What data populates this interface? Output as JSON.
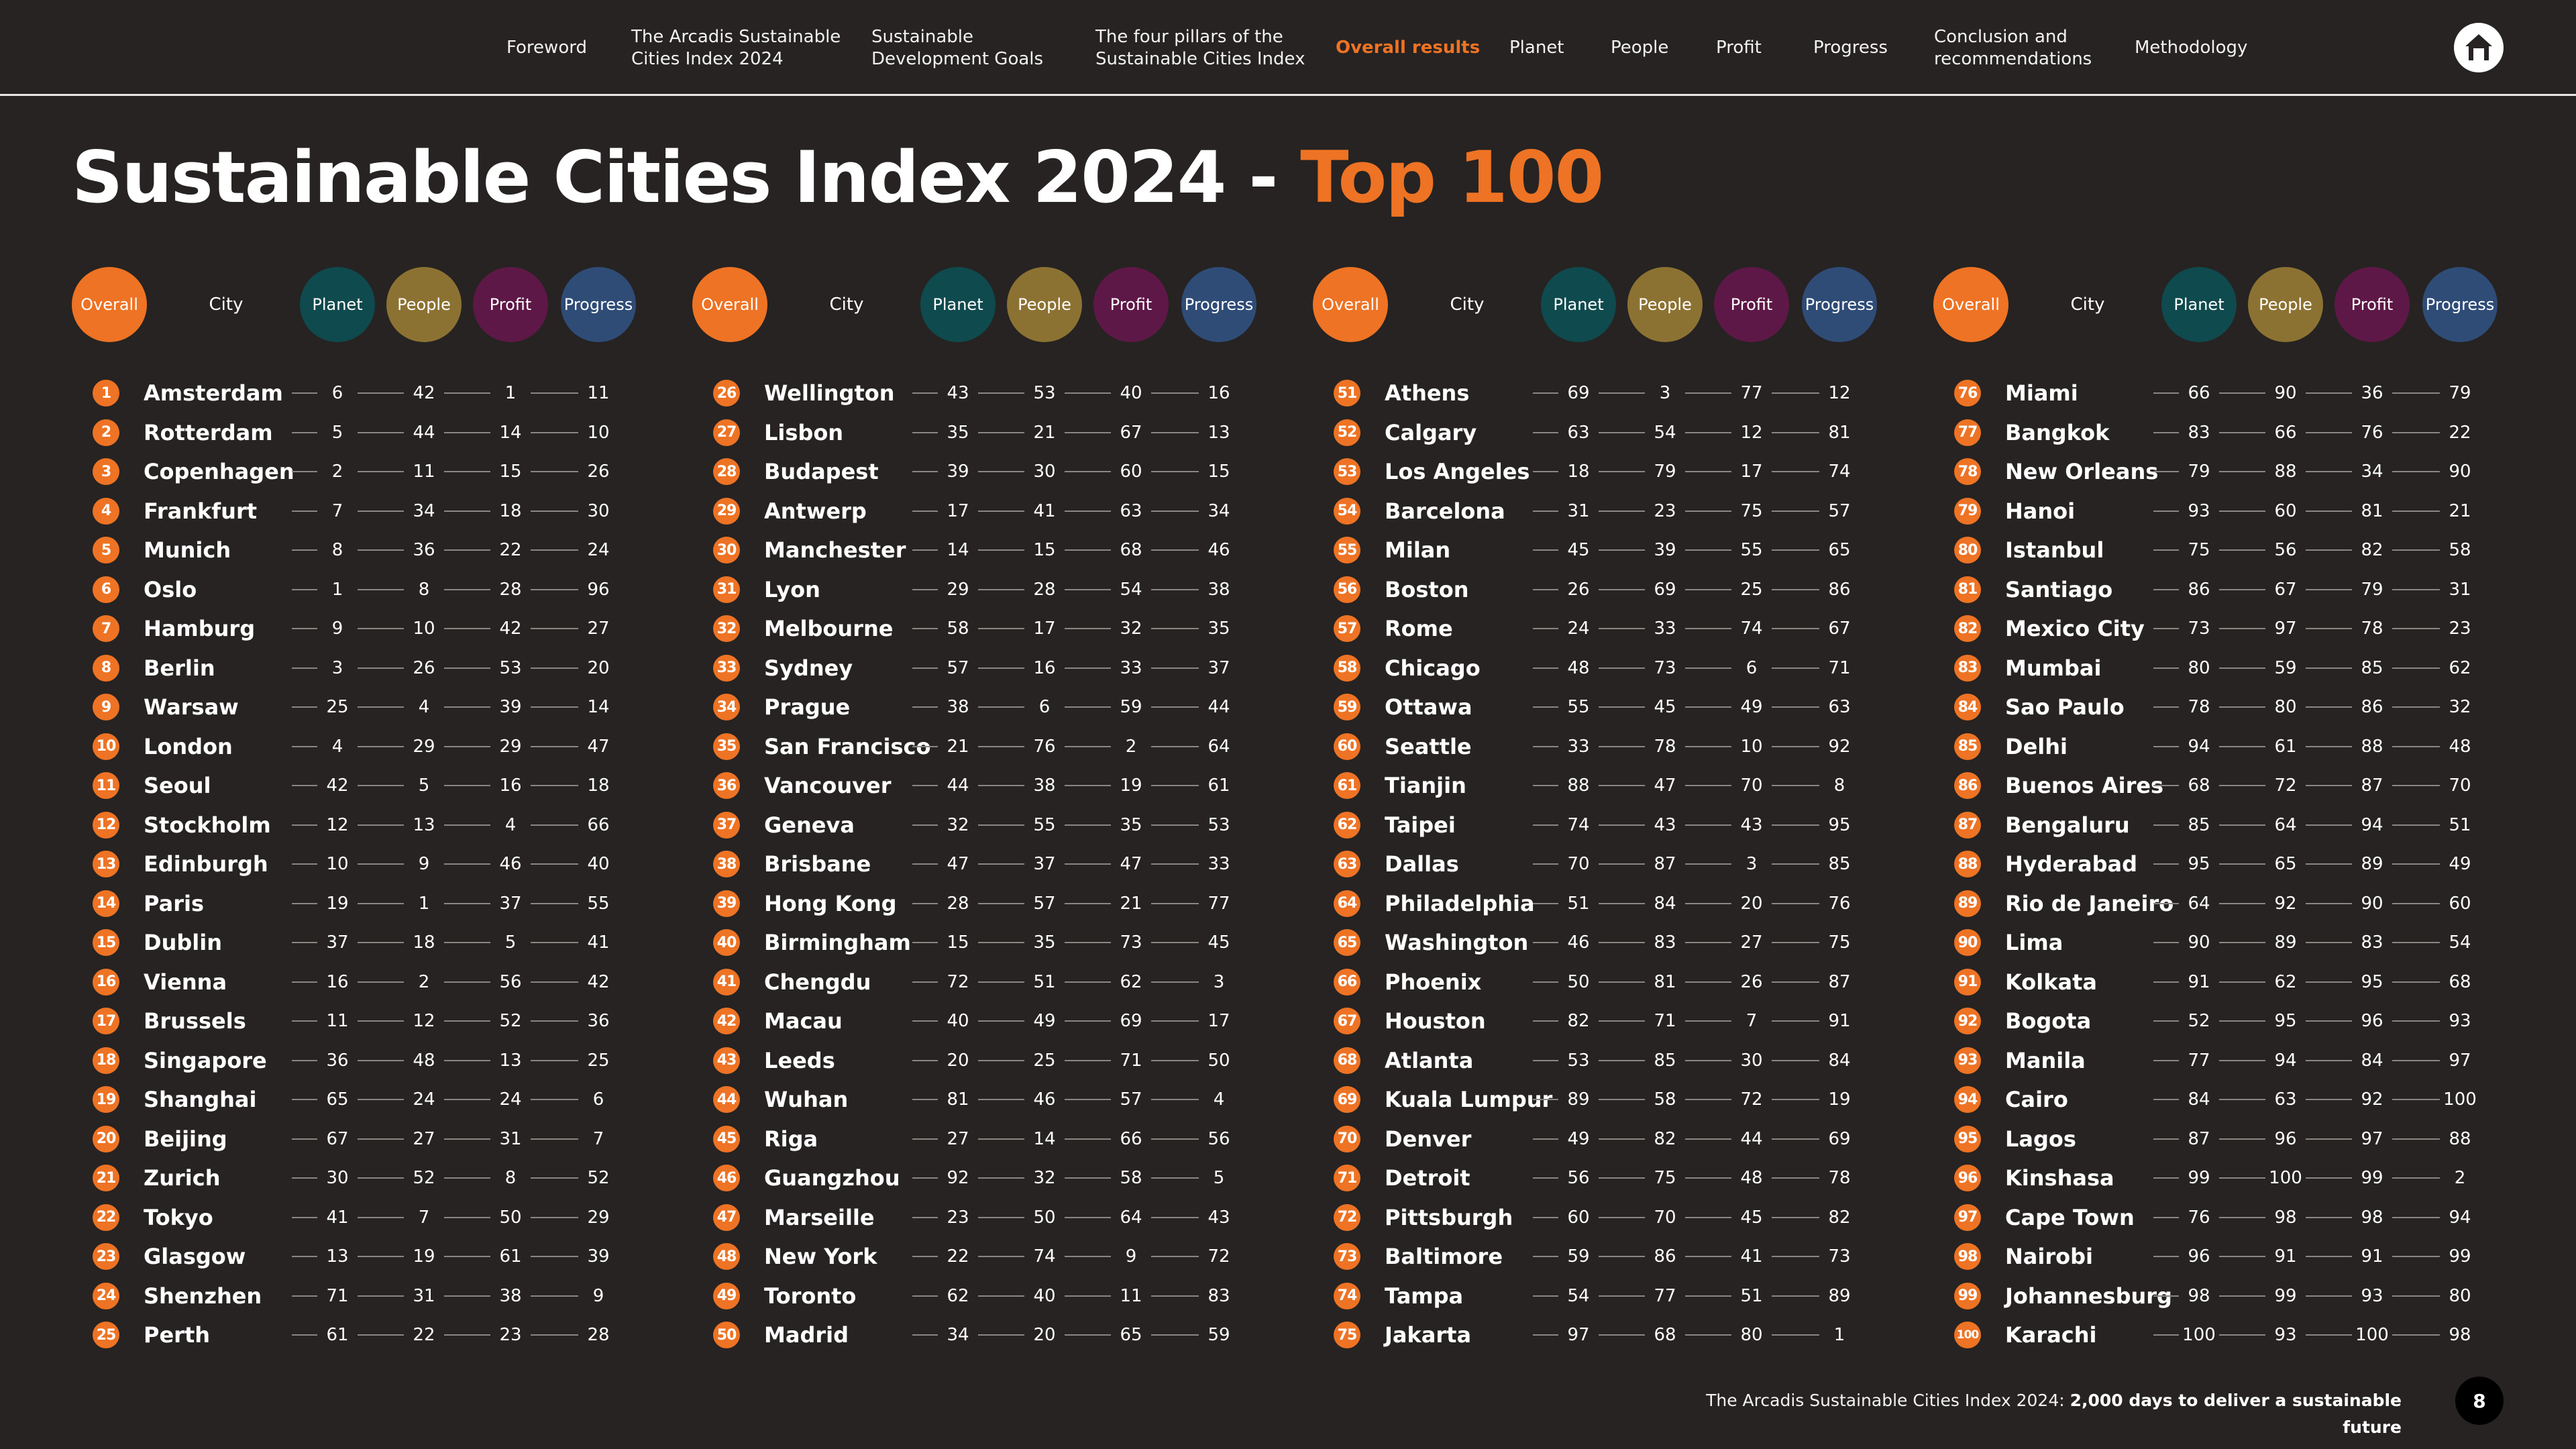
{
  "nav": {
    "items": [
      {
        "label": "Foreword",
        "active": false
      },
      {
        "label": "The Arcadis Sustainable\nCities Index 2024",
        "active": false
      },
      {
        "label": "Sustainable\nDevelopment Goals",
        "active": false
      },
      {
        "label": "The four pillars of the\nSustainable Cities Index",
        "active": false
      },
      {
        "label": "Overall results",
        "active": true
      },
      {
        "label": "Planet",
        "active": false
      },
      {
        "label": "People",
        "active": false
      },
      {
        "label": "Profit",
        "active": false
      },
      {
        "label": "Progress",
        "active": false
      },
      {
        "label": "Conclusion and\nrecommendations",
        "active": false
      },
      {
        "label": "Methodology",
        "active": false
      }
    ],
    "home_icon": "home-icon"
  },
  "title": {
    "main": "Sustainable Cities Index 2024 - ",
    "accent": "Top 100"
  },
  "headers": {
    "overall": "Overall",
    "city": "City",
    "planet": "Planet",
    "people": "People",
    "profit": "Profit",
    "progress": "Progress"
  },
  "colors": {
    "background": "#262322",
    "accent": "#ee7324",
    "planet": "#0f4a4e",
    "people": "#8c7232",
    "profit": "#5e1847",
    "progress": "#2f4c77"
  },
  "rankings": [
    {
      "rank": "1",
      "city": "Amsterdam",
      "planet": "6",
      "people": "42",
      "profit": "1",
      "progress": "11"
    },
    {
      "rank": "2",
      "city": "Rotterdam",
      "planet": "5",
      "people": "44",
      "profit": "14",
      "progress": "10"
    },
    {
      "rank": "3",
      "city": "Copenhagen",
      "planet": "2",
      "people": "11",
      "profit": "15",
      "progress": "26"
    },
    {
      "rank": "4",
      "city": "Frankfurt",
      "planet": "7",
      "people": "34",
      "profit": "18",
      "progress": "30"
    },
    {
      "rank": "5",
      "city": "Munich",
      "planet": "8",
      "people": "36",
      "profit": "22",
      "progress": "24"
    },
    {
      "rank": "6",
      "city": "Oslo",
      "planet": "1",
      "people": "8",
      "profit": "28",
      "progress": "96"
    },
    {
      "rank": "7",
      "city": "Hamburg",
      "planet": "9",
      "people": "10",
      "profit": "42",
      "progress": "27"
    },
    {
      "rank": "8",
      "city": "Berlin",
      "planet": "3",
      "people": "26",
      "profit": "53",
      "progress": "20"
    },
    {
      "rank": "9",
      "city": "Warsaw",
      "planet": "25",
      "people": "4",
      "profit": "39",
      "progress": "14"
    },
    {
      "rank": "10",
      "city": "London",
      "planet": "4",
      "people": "29",
      "profit": "29",
      "progress": "47"
    },
    {
      "rank": "11",
      "city": "Seoul",
      "planet": "42",
      "people": "5",
      "profit": "16",
      "progress": "18"
    },
    {
      "rank": "12",
      "city": "Stockholm",
      "planet": "12",
      "people": "13",
      "profit": "4",
      "progress": "66"
    },
    {
      "rank": "13",
      "city": "Edinburgh",
      "planet": "10",
      "people": "9",
      "profit": "46",
      "progress": "40"
    },
    {
      "rank": "14",
      "city": "Paris",
      "planet": "19",
      "people": "1",
      "profit": "37",
      "progress": "55"
    },
    {
      "rank": "15",
      "city": "Dublin",
      "planet": "37",
      "people": "18",
      "profit": "5",
      "progress": "41"
    },
    {
      "rank": "16",
      "city": "Vienna",
      "planet": "16",
      "people": "2",
      "profit": "56",
      "progress": "42"
    },
    {
      "rank": "17",
      "city": "Brussels",
      "planet": "11",
      "people": "12",
      "profit": "52",
      "progress": "36"
    },
    {
      "rank": "18",
      "city": "Singapore",
      "planet": "36",
      "people": "48",
      "profit": "13",
      "progress": "25"
    },
    {
      "rank": "19",
      "city": "Shanghai",
      "planet": "65",
      "people": "24",
      "profit": "24",
      "progress": "6"
    },
    {
      "rank": "20",
      "city": "Beijing",
      "planet": "67",
      "people": "27",
      "profit": "31",
      "progress": "7"
    },
    {
      "rank": "21",
      "city": "Zurich",
      "planet": "30",
      "people": "52",
      "profit": "8",
      "progress": "52"
    },
    {
      "rank": "22",
      "city": "Tokyo",
      "planet": "41",
      "people": "7",
      "profit": "50",
      "progress": "29"
    },
    {
      "rank": "23",
      "city": "Glasgow",
      "planet": "13",
      "people": "19",
      "profit": "61",
      "progress": "39"
    },
    {
      "rank": "24",
      "city": "Shenzhen",
      "planet": "71",
      "people": "31",
      "profit": "38",
      "progress": "9"
    },
    {
      "rank": "25",
      "city": "Perth",
      "planet": "61",
      "people": "22",
      "profit": "23",
      "progress": "28"
    },
    {
      "rank": "26",
      "city": "Wellington",
      "planet": "43",
      "people": "53",
      "profit": "40",
      "progress": "16"
    },
    {
      "rank": "27",
      "city": "Lisbon",
      "planet": "35",
      "people": "21",
      "profit": "67",
      "progress": "13"
    },
    {
      "rank": "28",
      "city": "Budapest",
      "planet": "39",
      "people": "30",
      "profit": "60",
      "progress": "15"
    },
    {
      "rank": "29",
      "city": "Antwerp",
      "planet": "17",
      "people": "41",
      "profit": "63",
      "progress": "34"
    },
    {
      "rank": "30",
      "city": "Manchester",
      "planet": "14",
      "people": "15",
      "profit": "68",
      "progress": "46"
    },
    {
      "rank": "31",
      "city": "Lyon",
      "planet": "29",
      "people": "28",
      "profit": "54",
      "progress": "38"
    },
    {
      "rank": "32",
      "city": "Melbourne",
      "planet": "58",
      "people": "17",
      "profit": "32",
      "progress": "35"
    },
    {
      "rank": "33",
      "city": "Sydney",
      "planet": "57",
      "people": "16",
      "profit": "33",
      "progress": "37"
    },
    {
      "rank": "34",
      "city": "Prague",
      "planet": "38",
      "people": "6",
      "profit": "59",
      "progress": "44"
    },
    {
      "rank": "35",
      "city": "San Francisco",
      "planet": "21",
      "people": "76",
      "profit": "2",
      "progress": "64"
    },
    {
      "rank": "36",
      "city": "Vancouver",
      "planet": "44",
      "people": "38",
      "profit": "19",
      "progress": "61"
    },
    {
      "rank": "37",
      "city": "Geneva",
      "planet": "32",
      "people": "55",
      "profit": "35",
      "progress": "53"
    },
    {
      "rank": "38",
      "city": "Brisbane",
      "planet": "47",
      "people": "37",
      "profit": "47",
      "progress": "33"
    },
    {
      "rank": "39",
      "city": "Hong Kong",
      "planet": "28",
      "people": "57",
      "profit": "21",
      "progress": "77"
    },
    {
      "rank": "40",
      "city": "Birmingham",
      "planet": "15",
      "people": "35",
      "profit": "73",
      "progress": "45"
    },
    {
      "rank": "41",
      "city": "Chengdu",
      "planet": "72",
      "people": "51",
      "profit": "62",
      "progress": "3"
    },
    {
      "rank": "42",
      "city": "Macau",
      "planet": "40",
      "people": "49",
      "profit": "69",
      "progress": "17"
    },
    {
      "rank": "43",
      "city": "Leeds",
      "planet": "20",
      "people": "25",
      "profit": "71",
      "progress": "50"
    },
    {
      "rank": "44",
      "city": "Wuhan",
      "planet": "81",
      "people": "46",
      "profit": "57",
      "progress": "4"
    },
    {
      "rank": "45",
      "city": "Riga",
      "planet": "27",
      "people": "14",
      "profit": "66",
      "progress": "56"
    },
    {
      "rank": "46",
      "city": "Guangzhou",
      "planet": "92",
      "people": "32",
      "profit": "58",
      "progress": "5"
    },
    {
      "rank": "47",
      "city": "Marseille",
      "planet": "23",
      "people": "50",
      "profit": "64",
      "progress": "43"
    },
    {
      "rank": "48",
      "city": "New York",
      "planet": "22",
      "people": "74",
      "profit": "9",
      "progress": "72"
    },
    {
      "rank": "49",
      "city": "Toronto",
      "planet": "62",
      "people": "40",
      "profit": "11",
      "progress": "83"
    },
    {
      "rank": "50",
      "city": "Madrid",
      "planet": "34",
      "people": "20",
      "profit": "65",
      "progress": "59"
    },
    {
      "rank": "51",
      "city": "Athens",
      "planet": "69",
      "people": "3",
      "profit": "77",
      "progress": "12"
    },
    {
      "rank": "52",
      "city": "Calgary",
      "planet": "63",
      "people": "54",
      "profit": "12",
      "progress": "81"
    },
    {
      "rank": "53",
      "city": "Los Angeles",
      "planet": "18",
      "people": "79",
      "profit": "17",
      "progress": "74"
    },
    {
      "rank": "54",
      "city": "Barcelona",
      "planet": "31",
      "people": "23",
      "profit": "75",
      "progress": "57"
    },
    {
      "rank": "55",
      "city": "Milan",
      "planet": "45",
      "people": "39",
      "profit": "55",
      "progress": "65"
    },
    {
      "rank": "56",
      "city": "Boston",
      "planet": "26",
      "people": "69",
      "profit": "25",
      "progress": "86"
    },
    {
      "rank": "57",
      "city": "Rome",
      "planet": "24",
      "people": "33",
      "profit": "74",
      "progress": "67"
    },
    {
      "rank": "58",
      "city": "Chicago",
      "planet": "48",
      "people": "73",
      "profit": "6",
      "progress": "71"
    },
    {
      "rank": "59",
      "city": "Ottawa",
      "planet": "55",
      "people": "45",
      "profit": "49",
      "progress": "63"
    },
    {
      "rank": "60",
      "city": "Seattle",
      "planet": "33",
      "people": "78",
      "profit": "10",
      "progress": "92"
    },
    {
      "rank": "61",
      "city": "Tianjin",
      "planet": "88",
      "people": "47",
      "profit": "70",
      "progress": "8"
    },
    {
      "rank": "62",
      "city": "Taipei",
      "planet": "74",
      "people": "43",
      "profit": "43",
      "progress": "95"
    },
    {
      "rank": "63",
      "city": "Dallas",
      "planet": "70",
      "people": "87",
      "profit": "3",
      "progress": "85"
    },
    {
      "rank": "64",
      "city": "Philadelphia",
      "planet": "51",
      "people": "84",
      "profit": "20",
      "progress": "76"
    },
    {
      "rank": "65",
      "city": "Washington",
      "planet": "46",
      "people": "83",
      "profit": "27",
      "progress": "75"
    },
    {
      "rank": "66",
      "city": "Phoenix",
      "planet": "50",
      "people": "81",
      "profit": "26",
      "progress": "87"
    },
    {
      "rank": "67",
      "city": "Houston",
      "planet": "82",
      "people": "71",
      "profit": "7",
      "progress": "91"
    },
    {
      "rank": "68",
      "city": "Atlanta",
      "planet": "53",
      "people": "85",
      "profit": "30",
      "progress": "84"
    },
    {
      "rank": "69",
      "city": "Kuala Lumpur",
      "planet": "89",
      "people": "58",
      "profit": "72",
      "progress": "19"
    },
    {
      "rank": "70",
      "city": "Denver",
      "planet": "49",
      "people": "82",
      "profit": "44",
      "progress": "69"
    },
    {
      "rank": "71",
      "city": "Detroit",
      "planet": "56",
      "people": "75",
      "profit": "48",
      "progress": "78"
    },
    {
      "rank": "72",
      "city": "Pittsburgh",
      "planet": "60",
      "people": "70",
      "profit": "45",
      "progress": "82"
    },
    {
      "rank": "73",
      "city": "Baltimore",
      "planet": "59",
      "people": "86",
      "profit": "41",
      "progress": "73"
    },
    {
      "rank": "74",
      "city": "Tampa",
      "planet": "54",
      "people": "77",
      "profit": "51",
      "progress": "89"
    },
    {
      "rank": "75",
      "city": "Jakarta",
      "planet": "97",
      "people": "68",
      "profit": "80",
      "progress": "1"
    },
    {
      "rank": "76",
      "city": "Miami",
      "planet": "66",
      "people": "90",
      "profit": "36",
      "progress": "79"
    },
    {
      "rank": "77",
      "city": "Bangkok",
      "planet": "83",
      "people": "66",
      "profit": "76",
      "progress": "22"
    },
    {
      "rank": "78",
      "city": "New Orleans",
      "planet": "79",
      "people": "88",
      "profit": "34",
      "progress": "90"
    },
    {
      "rank": "79",
      "city": "Hanoi",
      "planet": "93",
      "people": "60",
      "profit": "81",
      "progress": "21"
    },
    {
      "rank": "80",
      "city": "Istanbul",
      "planet": "75",
      "people": "56",
      "profit": "82",
      "progress": "58"
    },
    {
      "rank": "81",
      "city": "Santiago",
      "planet": "86",
      "people": "67",
      "profit": "79",
      "progress": "31"
    },
    {
      "rank": "82",
      "city": "Mexico City",
      "planet": "73",
      "people": "97",
      "profit": "78",
      "progress": "23"
    },
    {
      "rank": "83",
      "city": "Mumbai",
      "planet": "80",
      "people": "59",
      "profit": "85",
      "progress": "62"
    },
    {
      "rank": "84",
      "city": "Sao Paulo",
      "planet": "78",
      "people": "80",
      "profit": "86",
      "progress": "32"
    },
    {
      "rank": "85",
      "city": "Delhi",
      "planet": "94",
      "people": "61",
      "profit": "88",
      "progress": "48"
    },
    {
      "rank": "86",
      "city": "Buenos Aires",
      "planet": "68",
      "people": "72",
      "profit": "87",
      "progress": "70"
    },
    {
      "rank": "87",
      "city": "Bengaluru",
      "planet": "85",
      "people": "64",
      "profit": "94",
      "progress": "51"
    },
    {
      "rank": "88",
      "city": "Hyderabad",
      "planet": "95",
      "people": "65",
      "profit": "89",
      "progress": "49"
    },
    {
      "rank": "89",
      "city": "Rio de Janeiro",
      "planet": "64",
      "people": "92",
      "profit": "90",
      "progress": "60"
    },
    {
      "rank": "90",
      "city": "Lima",
      "planet": "90",
      "people": "89",
      "profit": "83",
      "progress": "54"
    },
    {
      "rank": "91",
      "city": "Kolkata",
      "planet": "91",
      "people": "62",
      "profit": "95",
      "progress": "68"
    },
    {
      "rank": "92",
      "city": "Bogota",
      "planet": "52",
      "people": "95",
      "profit": "96",
      "progress": "93"
    },
    {
      "rank": "93",
      "city": "Manila",
      "planet": "77",
      "people": "94",
      "profit": "84",
      "progress": "97"
    },
    {
      "rank": "94",
      "city": "Cairo",
      "planet": "84",
      "people": "63",
      "profit": "92",
      "progress": "100"
    },
    {
      "rank": "95",
      "city": "Lagos",
      "planet": "87",
      "people": "96",
      "profit": "97",
      "progress": "88"
    },
    {
      "rank": "96",
      "city": "Kinshasa",
      "planet": "99",
      "people": "100",
      "profit": "99",
      "progress": "2"
    },
    {
      "rank": "97",
      "city": "Cape Town",
      "planet": "76",
      "people": "98",
      "profit": "98",
      "progress": "94"
    },
    {
      "rank": "98",
      "city": "Nairobi",
      "planet": "96",
      "people": "91",
      "profit": "91",
      "progress": "99"
    },
    {
      "rank": "99",
      "city": "Johannesburg",
      "planet": "98",
      "people": "99",
      "profit": "93",
      "progress": "80"
    },
    {
      "rank": "100",
      "city": "Karachi",
      "planet": "100",
      "people": "93",
      "profit": "100",
      "progress": "98"
    }
  ],
  "footer": {
    "text": "The Arcadis Sustainable Cities Index 2024: ",
    "bold": "2,000 days to deliver a sustainable future",
    "page_number": "8"
  }
}
